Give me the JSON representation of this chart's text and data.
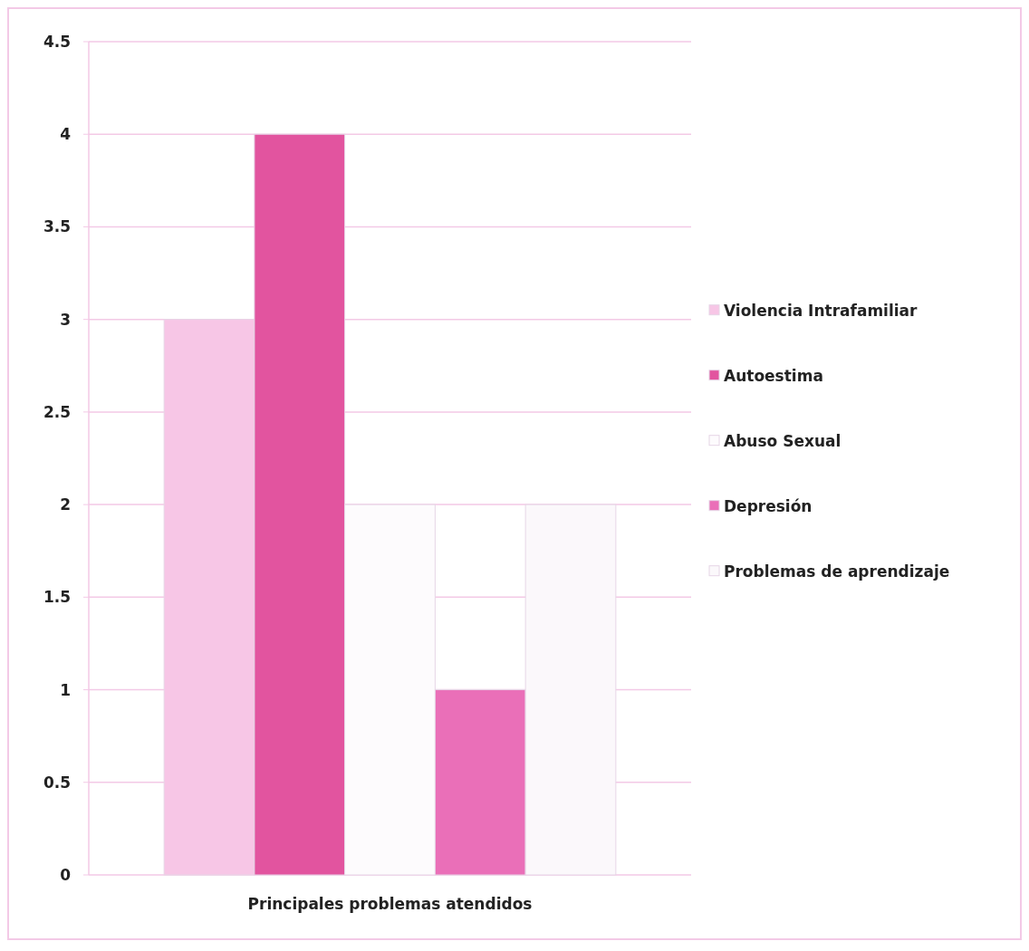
{
  "chart_data": {
    "type": "bar",
    "categories": [
      "Principales problemas atendidos"
    ],
    "series": [
      {
        "name": "Violencia Intrafamiliar",
        "color": "#f7c6e6",
        "values": [
          3
        ]
      },
      {
        "name": "Autoestima",
        "color": "#e2549f",
        "values": [
          4
        ]
      },
      {
        "name": "Abuso Sexual",
        "color": "#fdfbfd",
        "values": [
          2
        ]
      },
      {
        "name": "Depresión",
        "color": "#ea6fb8",
        "values": [
          1
        ]
      },
      {
        "name": "Problemas de aprendizaje",
        "color": "#fbf8fb",
        "values": [
          2
        ]
      }
    ],
    "ylim": [
      0,
      4.5
    ],
    "yticks": [
      0,
      0.5,
      1,
      1.5,
      2,
      2.5,
      3,
      3.5,
      4,
      4.5
    ],
    "grid": "y",
    "legend": "right"
  }
}
